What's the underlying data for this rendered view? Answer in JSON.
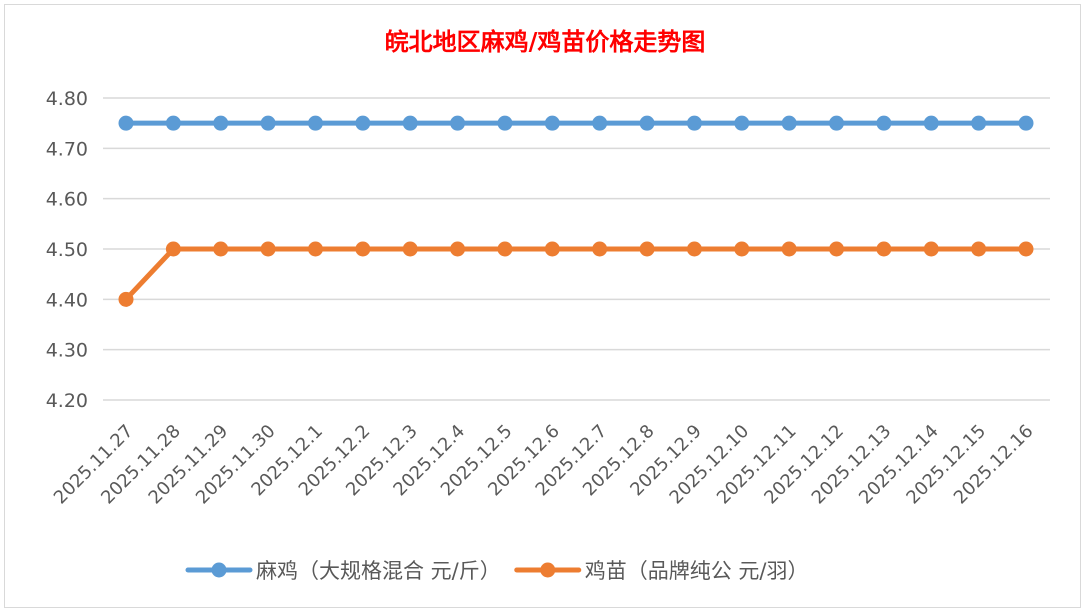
{
  "chart_data": {
    "type": "line",
    "title": "皖北地区麻鸡/鸡苗价格走势图",
    "xlabel": "",
    "ylabel": "",
    "ylim": [
      4.2,
      4.8
    ],
    "yticks": [
      "4.20",
      "4.30",
      "4.40",
      "4.50",
      "4.60",
      "4.70",
      "4.80"
    ],
    "grid": true,
    "legend_position": "bottom",
    "categories": [
      "2025.11.27",
      "2025.11.28",
      "2025.11.29",
      "2025.11.30",
      "2025.12.1",
      "2025.12.2",
      "2025.12.3",
      "2025.12.4",
      "2025.12.5",
      "2025.12.6",
      "2025.12.7",
      "2025.12.8",
      "2025.12.9",
      "2025.12.10",
      "2025.12.11",
      "2025.12.12",
      "2025.12.13",
      "2025.12.14",
      "2025.12.15",
      "2025.12.16"
    ],
    "series": [
      {
        "name": "麻鸡（大规格混合 元/斤）",
        "color": "#5b9bd5",
        "values": [
          4.75,
          4.75,
          4.75,
          4.75,
          4.75,
          4.75,
          4.75,
          4.75,
          4.75,
          4.75,
          4.75,
          4.75,
          4.75,
          4.75,
          4.75,
          4.75,
          4.75,
          4.75,
          4.75,
          4.75
        ]
      },
      {
        "name": "鸡苗（品牌纯公 元/羽）",
        "color": "#ed7d31",
        "values": [
          4.4,
          4.5,
          4.5,
          4.5,
          4.5,
          4.5,
          4.5,
          4.5,
          4.5,
          4.5,
          4.5,
          4.5,
          4.5,
          4.5,
          4.5,
          4.5,
          4.5,
          4.5,
          4.5,
          4.5
        ]
      }
    ]
  }
}
